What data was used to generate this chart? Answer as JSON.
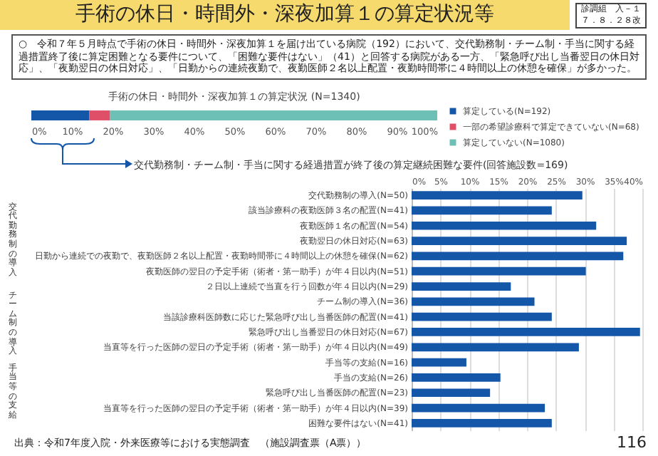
{
  "chart_data": [
    {
      "type": "other",
      "title": "手術の休日・時間外・深夜加算１の算定状況等",
      "annotations": [
        "○　令和７年５月時点で手術の休日・時間外・深夜加算１を届け出ている病院（192）において、交代勤務制・チーム制・手当に関する経過措置終了後に算定困難となる要件について、「困難な要件はない」（41）と回答する病院がある一方、「緊急呼び出し当番翌日の休日対応」、「夜勤翌日の休日対応」、「日勤からの連続夜勤で、夜勤医師２名以上配置・夜勤時間帯に４時間以上の休憩を確保」が多かった。",
        "診調組　入－１",
        "７．８．２８改"
      ]
    },
    {
      "type": "bar",
      "orientation": "horizontal",
      "stacked": true,
      "title": "手術の休日・時間外・深夜加算１の算定状況 (N=1340)",
      "categories": [
        null
      ],
      "series": [
        {
          "name": "算定している(N=192)",
          "color": "#1457a8",
          "values": [
            14.3
          ]
        },
        {
          "name": "一部の希望診療科で算定できていない(N=68)",
          "color": "#e04f68",
          "values": [
            5.1
          ]
        },
        {
          "name": "算定していない(N=1080)",
          "color": "#6cc0b6",
          "values": [
            80.6
          ]
        }
      ],
      "xlim": [
        0,
        100
      ],
      "xticks": [
        {
          "value": 0,
          "label": "0%"
        },
        {
          "value": 10,
          "label": "10%"
        },
        {
          "value": 20,
          "label": "20%"
        },
        {
          "value": 30,
          "label": "30%"
        },
        {
          "value": 40,
          "label": "40%"
        },
        {
          "value": 50,
          "label": "50%"
        },
        {
          "value": 60,
          "label": "60%"
        },
        {
          "value": 70,
          "label": "70%"
        },
        {
          "value": 80,
          "label": "80%"
        },
        {
          "value": 90,
          "label": "90%"
        },
        {
          "value": 100,
          "label": "100%"
        }
      ],
      "legend": "right",
      "grid": false
    },
    {
      "type": "bar",
      "orientation": "horizontal",
      "title": "交代勤務制・チーム制・手当に関する経過措置が終了後の算定継続困難な要件(回答施設数=169)",
      "categories": [
        "交代勤務制の導入(N=50)",
        "該当診療科の夜勤医師３名の配置(N=41)",
        "夜勤医師１名の配置(N=54)",
        "夜勤翌日の休日対応(N=63)",
        "日勤から連続での夜勤で、夜勤医師２名以上配置・夜勤時間帯に４時間以上の休憩を確保(N=62)",
        "夜勤医師の翌日の予定手術（術者・第一助手）が年４日以内(N=51)",
        "２日以上連続で当直を行う回数が年４日以内(N=29)",
        "チーム制の導入(N=36)",
        "当該診療科医師数に応じた緊急呼び出し当番医師の配置(N=41)",
        "緊急呼び出し当番翌日の休日対応(N=67)",
        "当直等を行った医師の翌日の予定手術（術者・第一助手）が年４日以内(N=49)",
        "手当等の支給(N=16)",
        "手当の支給(N=26)",
        "緊急呼び出し当番医師の配置(N=23)",
        "当直等を行った医師の翌日の予定手術（術者・第一助手）が年４日以内(N=39)",
        "困難な要件はない(N=41)"
      ],
      "values": [
        29.6,
        24.3,
        32.0,
        37.3,
        36.7,
        30.2,
        17.2,
        21.3,
        24.3,
        39.6,
        29.0,
        9.5,
        15.4,
        13.6,
        23.1,
        24.3
      ],
      "color": "#1457a8",
      "xlim": [
        0,
        40
      ],
      "xticks": [
        {
          "value": 0,
          "label": "0%"
        },
        {
          "value": 5,
          "label": "5%"
        },
        {
          "value": 10,
          "label": "10%"
        },
        {
          "value": 15,
          "label": "15%"
        },
        {
          "value": 20,
          "label": "20%"
        },
        {
          "value": 25,
          "label": "25%"
        },
        {
          "value": 30,
          "label": "30%"
        },
        {
          "value": 35,
          "label": "35%"
        },
        {
          "value": 40,
          "label": "40%"
        }
      ],
      "grid": "x",
      "annotations": [
        "交代勤務制の導入",
        "チーム制の導入",
        "手当等の支給",
        "出典：令和7年度入院・外来医療等における実態調査　（施設調査票（A票））",
        "116"
      ]
    }
  ]
}
